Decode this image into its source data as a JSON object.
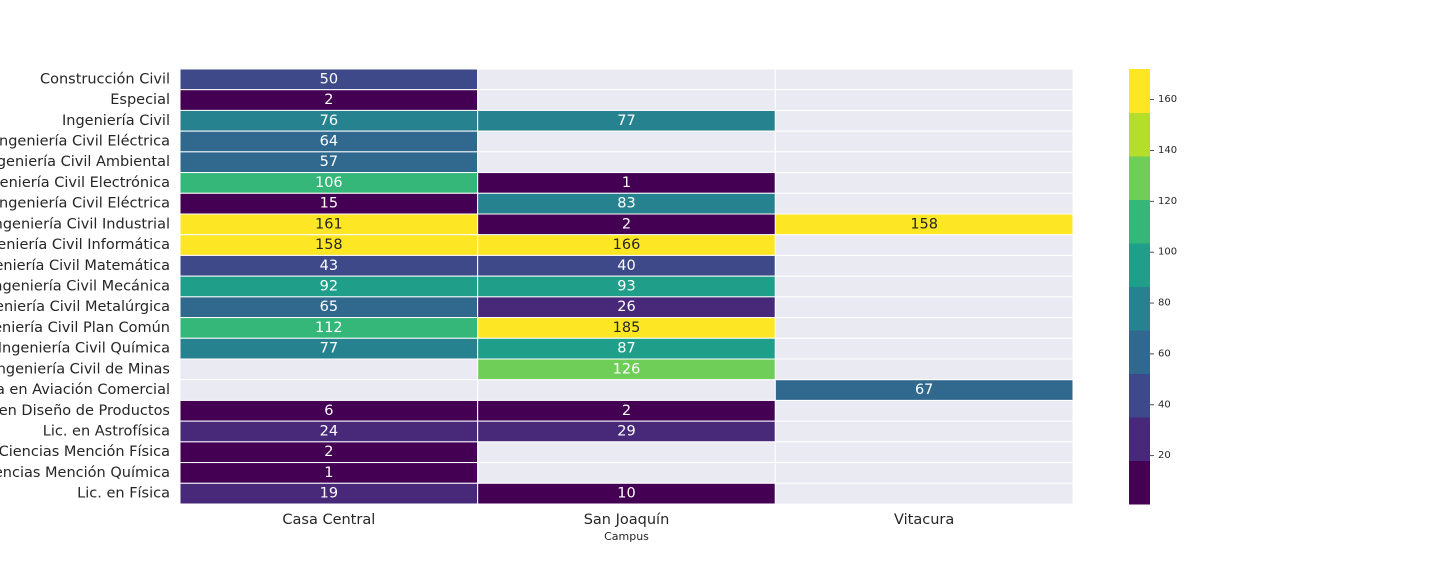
{
  "chart_data": {
    "type": "heatmap",
    "title": "",
    "xlabel": "Campus",
    "ylabel": "",
    "columns": [
      "Casa Central",
      "San Joaquín",
      "Vitacura"
    ],
    "rows": [
      "Construcción Civil",
      "Especial",
      "Ingeniería Civil",
      "Ingeniería Civil  Eléctrica",
      "Ingeniería Civil Ambiental",
      "Ingeniería Civil Electrónica",
      "Ingeniería Civil Eléctrica",
      "Ingeniería Civil Industrial",
      "Ingeniería Civil Informática",
      "Ingeniería Civil Matemática",
      "Ingeniería Civil Mecánica",
      "Ingeniería Civil Metalúrgica",
      "Ingeniería Civil Plan Común",
      "Ingeniería Civil Química",
      "Ingeniería Civil de Minas",
      "Ingeniería en Aviación Comercial",
      "Ingeniería en Diseño de Productos",
      "Lic. en Astrofísica",
      "Lic. en Ciencias Mención Física",
      "Lic. en Ciencias Mención Química",
      "Lic. en Física"
    ],
    "values": [
      [
        50,
        null,
        null
      ],
      [
        2,
        null,
        null
      ],
      [
        76,
        77,
        null
      ],
      [
        64,
        null,
        null
      ],
      [
        57,
        null,
        null
      ],
      [
        106,
        1,
        null
      ],
      [
        15,
        83,
        null
      ],
      [
        161,
        2,
        158
      ],
      [
        158,
        166,
        null
      ],
      [
        43,
        40,
        null
      ],
      [
        92,
        93,
        null
      ],
      [
        65,
        26,
        null
      ],
      [
        112,
        185,
        null
      ],
      [
        77,
        87,
        null
      ],
      [
        null,
        126,
        null
      ],
      [
        null,
        null,
        67
      ],
      [
        6,
        2,
        null
      ],
      [
        24,
        29,
        null
      ],
      [
        2,
        null,
        null
      ],
      [
        1,
        null,
        null
      ],
      [
        19,
        10,
        null
      ]
    ],
    "colormap": "viridis",
    "colorbar": {
      "range": [
        1,
        172
      ],
      "levels": 10,
      "ticks": [
        20,
        40,
        60,
        80,
        100,
        120,
        140,
        160
      ],
      "colors": [
        "#440154",
        "#482878",
        "#3e4989",
        "#31688e",
        "#26828e",
        "#1f9e89",
        "#35b779",
        "#6ece58",
        "#b5de2b",
        "#fde725"
      ]
    },
    "missing_color": "#eaeaf2",
    "grid": false,
    "legend": "colorbar-right"
  }
}
